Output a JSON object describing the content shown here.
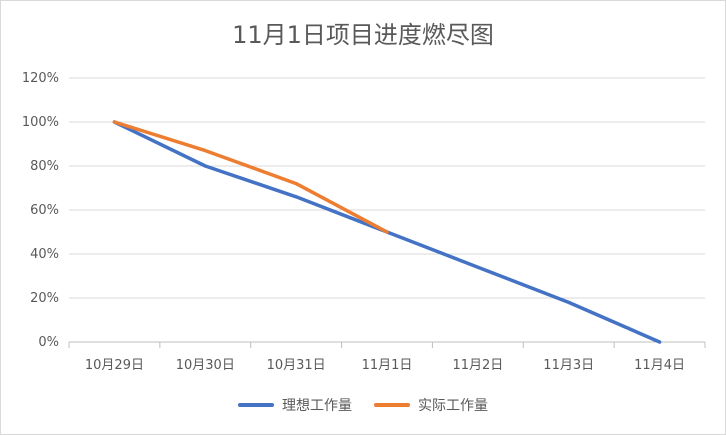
{
  "chart_data": {
    "type": "line",
    "title": "11月1日项目进度燃尽图",
    "categories": [
      "10月29日",
      "10月30日",
      "10月31日",
      "11月1日",
      "11月2日",
      "11月3日",
      "11月4日"
    ],
    "ylim": [
      0,
      120
    ],
    "yticks": [
      0,
      20,
      40,
      60,
      80,
      100,
      120
    ],
    "ytick_labels": [
      "0%",
      "20%",
      "40%",
      "60%",
      "80%",
      "100%",
      "120%"
    ],
    "grid": true,
    "legend_position": "bottom",
    "series": [
      {
        "name": "理想工作量",
        "color": "#4472c4",
        "values": [
          100,
          80,
          66,
          50,
          34,
          18,
          0
        ]
      },
      {
        "name": "实际工作量",
        "color": "#ed7d31",
        "values": [
          100,
          87,
          72,
          50,
          null,
          null,
          null
        ]
      }
    ]
  }
}
